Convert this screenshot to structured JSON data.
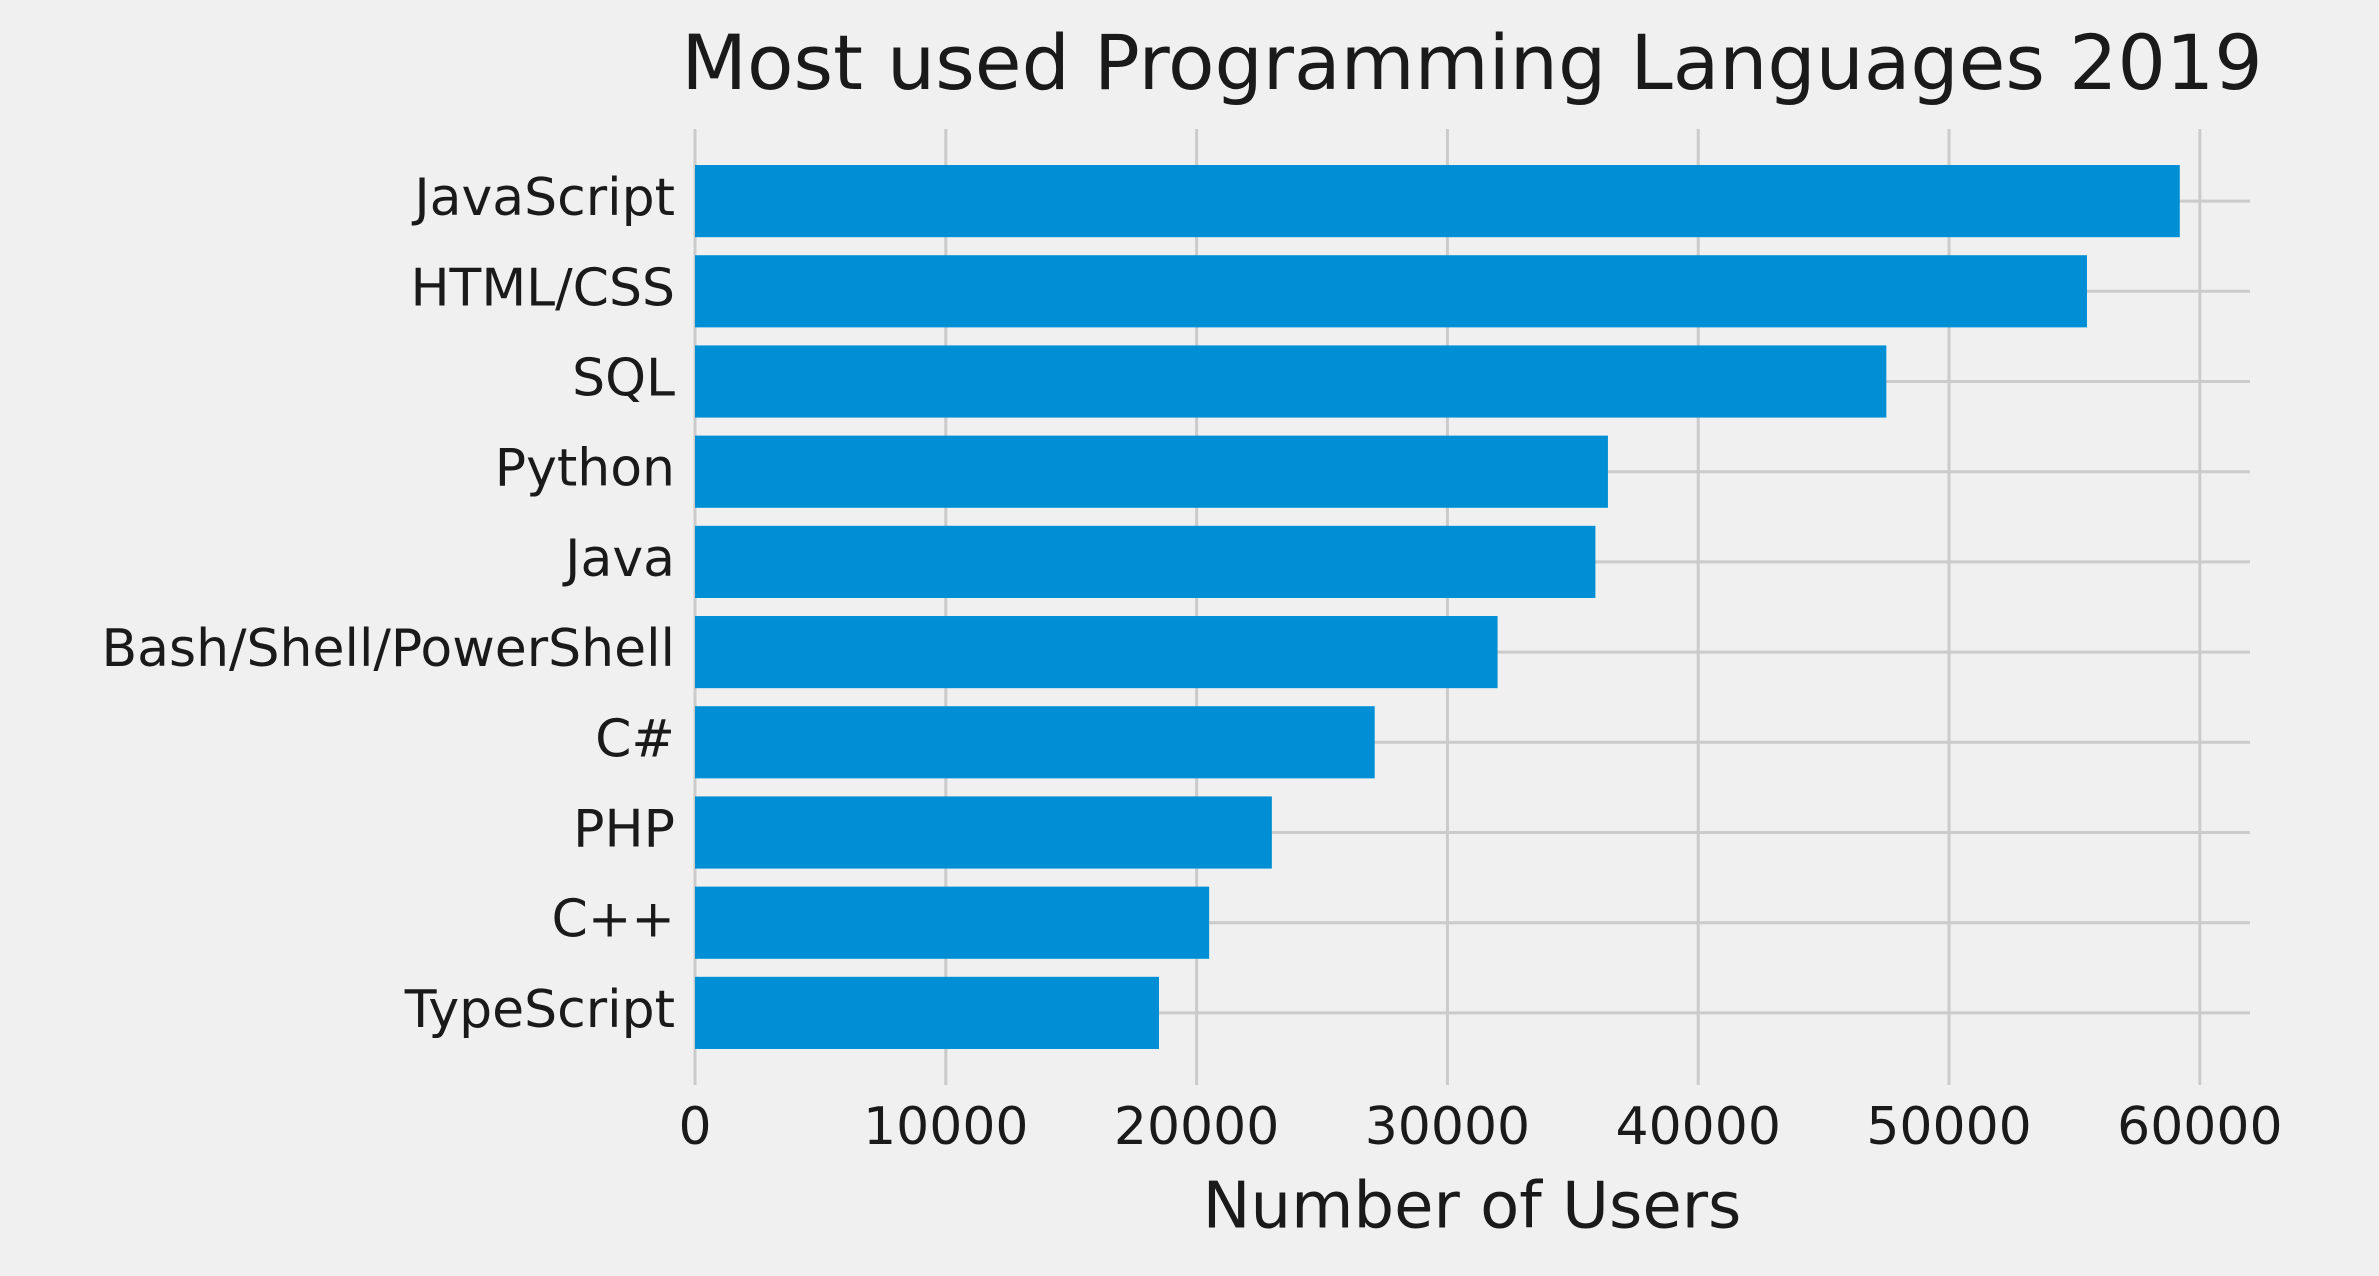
{
  "chart_data": {
    "type": "barh",
    "title": "Most used Programming Languages 2019",
    "xlabel": "Number of Users",
    "categories": [
      "JavaScript",
      "HTML/CSS",
      "SQL",
      "Python",
      "Java",
      "Bash/Shell/PowerShell",
      "C#",
      "PHP",
      "C++",
      "TypeScript"
    ],
    "values": [
      59200,
      55500,
      47500,
      36400,
      35900,
      32000,
      27100,
      23000,
      20500,
      18500
    ],
    "color": "#008fd5",
    "xlim": [
      0,
      62000
    ],
    "xticks": [
      0,
      10000,
      20000,
      30000,
      40000,
      50000,
      60000
    ],
    "grid": true
  }
}
